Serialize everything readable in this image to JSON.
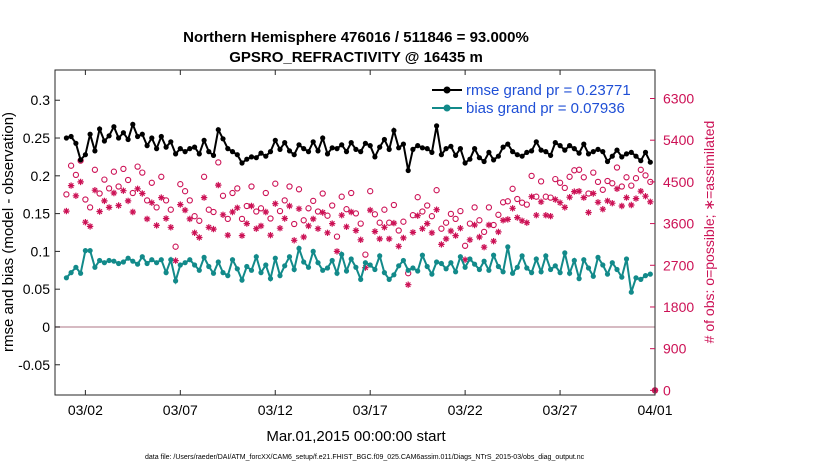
{
  "chart_data": {
    "type": "line",
    "title": "Northern Hemisphere 476016 / 511846 = 93.000%",
    "subtitle": "GPSRO_REFRACTIVITY @ 16435 m",
    "xlabel": "Mar.01,2015 00:00:00 start",
    "ylabel": "rmse and bias (model - observation)",
    "y2label": "# of obs: o=possible; ∗=assimilated",
    "xticks": [
      "03/02",
      "03/07",
      "03/12",
      "03/17",
      "03/22",
      "03/27",
      "04/01"
    ],
    "xlim_days": [
      -0.6,
      31
    ],
    "xtick_days": [
      1,
      6,
      11,
      16,
      21,
      26,
      31
    ],
    "ylim": [
      -0.09,
      0.34
    ],
    "yticks": [
      "-0.05",
      "0",
      "0.05",
      "0.1",
      "0.15",
      "0.2",
      "0.25",
      "0.3"
    ],
    "ytick_values": [
      -0.05,
      0,
      0.05,
      0.1,
      0.15,
      0.2,
      0.25,
      0.3
    ],
    "y2lim": [
      -100,
      6915
    ],
    "y2ticks": [
      "0",
      "900",
      "1800",
      "2700",
      "3600",
      "4500",
      "5400",
      "6300"
    ],
    "y2tick_values": [
      0,
      900,
      1800,
      2700,
      3600,
      4500,
      5400,
      6300
    ],
    "legend_placement": "top-right",
    "grid": false,
    "zero_line": 0,
    "n_points": 124,
    "series": [
      {
        "name": "rmse grand pr = 0.23771",
        "color": "#000000",
        "marker": "circle-filled",
        "values": [
          0.25,
          0.252,
          0.243,
          0.221,
          0.228,
          0.255,
          0.233,
          0.262,
          0.246,
          0.253,
          0.265,
          0.25,
          0.257,
          0.248,
          0.268,
          0.252,
          0.255,
          0.24,
          0.25,
          0.236,
          0.252,
          0.238,
          0.245,
          0.229,
          0.236,
          0.232,
          0.236,
          0.238,
          0.229,
          0.247,
          0.232,
          0.227,
          0.261,
          0.249,
          0.236,
          0.232,
          0.228,
          0.217,
          0.222,
          0.225,
          0.224,
          0.23,
          0.226,
          0.232,
          0.247,
          0.235,
          0.244,
          0.233,
          0.228,
          0.241,
          0.236,
          0.232,
          0.245,
          0.233,
          0.25,
          0.229,
          0.237,
          0.236,
          0.241,
          0.232,
          0.244,
          0.235,
          0.232,
          0.243,
          0.24,
          0.225,
          0.238,
          0.248,
          0.235,
          0.26,
          0.237,
          0.242,
          0.207,
          0.235,
          0.24,
          0.237,
          0.236,
          0.231,
          0.266,
          0.228,
          0.236,
          0.239,
          0.227,
          0.236,
          0.217,
          0.222,
          0.236,
          0.224,
          0.219,
          0.231,
          0.221,
          0.226,
          0.238,
          0.242,
          0.232,
          0.228,
          0.226,
          0.231,
          0.233,
          0.245,
          0.234,
          0.232,
          0.227,
          0.244,
          0.24,
          0.234,
          0.24,
          0.236,
          0.23,
          0.242,
          0.229,
          0.232,
          0.235,
          0.232,
          0.219,
          0.226,
          0.234,
          0.225,
          0.229,
          0.231,
          0.226,
          0.22,
          0.231,
          0.218
        ]
      },
      {
        "name": "bias grand pr = 0.07936",
        "color": "#128a8a",
        "marker": "circle-filled",
        "values": [
          0.065,
          0.072,
          0.079,
          0.071,
          0.101,
          0.101,
          0.079,
          0.088,
          0.085,
          0.088,
          0.087,
          0.084,
          0.086,
          0.091,
          0.087,
          0.083,
          0.093,
          0.084,
          0.089,
          0.085,
          0.089,
          0.072,
          0.089,
          0.061,
          0.082,
          0.085,
          0.089,
          0.082,
          0.075,
          0.092,
          0.08,
          0.071,
          0.086,
          0.072,
          0.068,
          0.089,
          0.077,
          0.062,
          0.08,
          0.075,
          0.093,
          0.072,
          0.082,
          0.064,
          0.091,
          0.068,
          0.081,
          0.093,
          0.076,
          0.104,
          0.086,
          0.079,
          0.1,
          0.085,
          0.075,
          0.078,
          0.088,
          0.071,
          0.096,
          0.074,
          0.09,
          0.079,
          0.063,
          0.085,
          0.082,
          0.076,
          0.094,
          0.072,
          0.063,
          0.069,
          0.081,
          0.088,
          0.075,
          0.078,
          0.074,
          0.095,
          0.08,
          0.07,
          0.086,
          0.084,
          0.077,
          0.085,
          0.073,
          0.093,
          0.079,
          0.09,
          0.083,
          0.076,
          0.087,
          0.075,
          0.095,
          0.08,
          0.073,
          0.106,
          0.071,
          0.079,
          0.094,
          0.078,
          0.072,
          0.09,
          0.073,
          0.094,
          0.076,
          0.081,
          0.072,
          0.098,
          0.071,
          0.088,
          0.064,
          0.089,
          0.078,
          0.067,
          0.092,
          0.082,
          0.07,
          0.085,
          0.076,
          0.066,
          0.09,
          0.046,
          0.065,
          0.063,
          0.068,
          0.07
        ]
      },
      {
        "name": "possible",
        "color": "#cc1155",
        "marker": "circle-open",
        "axis": "right",
        "values": [
          4230,
          4850,
          4650,
          4960,
          4120,
          3950,
          4760,
          4250,
          4550,
          4360,
          4720,
          4400,
          4780,
          4540,
          4260,
          4830,
          4700,
          4100,
          4480,
          3950,
          4610,
          4100,
          3900,
          3100,
          4450,
          4300,
          4100,
          3760,
          3660,
          4610,
          3900,
          3850,
          4920,
          4200,
          3700,
          4260,
          4360,
          3700,
          3980,
          4400,
          3860,
          3930,
          4260,
          3710,
          4460,
          3870,
          4100,
          4400,
          3590,
          4340,
          3670,
          3930,
          4090,
          3860,
          4250,
          3770,
          3990,
          3320,
          4180,
          3910,
          4260,
          3820,
          3600,
          2930,
          4300,
          3800,
          3620,
          3900,
          3620,
          4000,
          3450,
          3640,
          2530,
          3780,
          4170,
          3860,
          3990,
          3760,
          4320,
          3490,
          3620,
          3810,
          3700,
          3870,
          3120,
          3600,
          3950,
          3670,
          3420,
          3950,
          3570,
          3790,
          4060,
          4080,
          4350,
          4130,
          4050,
          4010,
          4630,
          4180,
          4510,
          4180,
          4160,
          4560,
          4480,
          4370,
          4610,
          4750,
          4760,
          4600,
          4250,
          4700,
          4500,
          4330,
          4520,
          4470,
          4810,
          4400,
          4600,
          4420,
          4580,
          4760,
          4640,
          4500
        ]
      },
      {
        "name": "assimilated",
        "color": "#cc1155",
        "marker": "star",
        "axis": "right",
        "values": [
          3870,
          4420,
          4200,
          4500,
          3630,
          3540,
          4320,
          3860,
          4090,
          3950,
          4260,
          3990,
          4310,
          4090,
          3850,
          4350,
          4250,
          3700,
          4050,
          3560,
          4160,
          3710,
          3520,
          2800,
          4010,
          3890,
          3700,
          3400,
          3300,
          4160,
          3520,
          3480,
          4430,
          3790,
          3350,
          3850,
          3940,
          3340,
          3600,
          3980,
          3490,
          3550,
          3850,
          3350,
          4030,
          3500,
          3710,
          3980,
          3240,
          3920,
          3310,
          3550,
          3700,
          3490,
          3840,
          3400,
          3600,
          3000,
          3780,
          3530,
          3850,
          3450,
          3250,
          2650,
          3890,
          3430,
          3270,
          3520,
          3270,
          3610,
          3110,
          3290,
          2280,
          3410,
          3770,
          3490,
          3600,
          3400,
          3900,
          3150,
          3270,
          3440,
          3340,
          3500,
          2820,
          3250,
          3570,
          3310,
          3090,
          3570,
          3220,
          3420,
          3670,
          3690,
          3930,
          3730,
          3660,
          3620,
          4180,
          3780,
          4070,
          3780,
          3760,
          4120,
          4050,
          3950,
          4170,
          4290,
          4300,
          4160,
          3840,
          4250,
          4060,
          3910,
          4090,
          4040,
          4350,
          3980,
          4160,
          4000,
          4140,
          4300,
          4190,
          4070
        ]
      }
    ],
    "extra_points": [
      {
        "series": "possible",
        "day": 31,
        "value": 0
      },
      {
        "series": "assimilated",
        "day": 31,
        "value": 0
      }
    ]
  },
  "footer": "data file: /Users/raeder/DAI/ATM_forcXX/CAM6_setup/f.e21.FHIST_BGC.f09_025.CAM6assim.011/Diags_NTrS_2015-03/obs_diag_output.nc"
}
